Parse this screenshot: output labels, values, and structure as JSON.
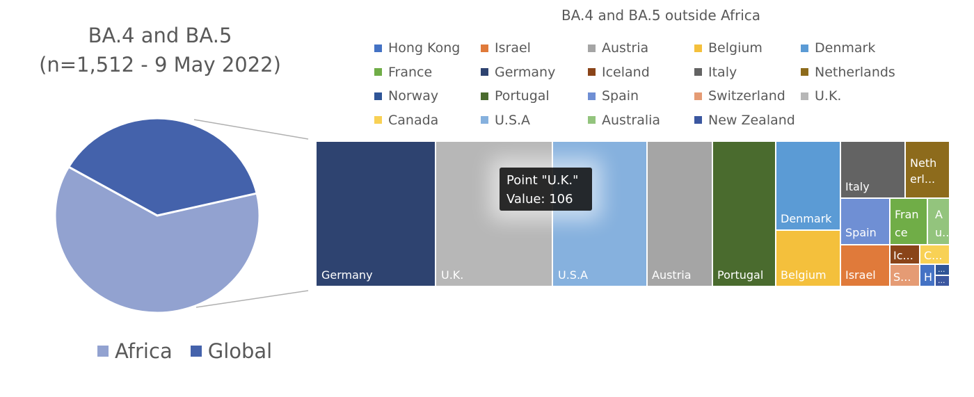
{
  "pie_chart": {
    "title_line1": "BA.4 and BA.5",
    "title_line2": "(n=1,512 - 9 May 2022)",
    "legend": [
      {
        "label": "Africa",
        "color": "#92a2d0"
      },
      {
        "label": "Global",
        "color": "#4462ab"
      }
    ]
  },
  "treemap": {
    "title": "BA.4 and BA.5 outside Africa",
    "legend": [
      {
        "label": "Hong Kong",
        "color": "#4472c4"
      },
      {
        "label": "Israel",
        "color": "#e07a3a"
      },
      {
        "label": "Austria",
        "color": "#a5a5a5"
      },
      {
        "label": "Belgium",
        "color": "#f4c03c"
      },
      {
        "label": "Denmark",
        "color": "#5b9bd5"
      },
      {
        "label": "France",
        "color": "#70ad47"
      },
      {
        "label": "Germany",
        "color": "#2e4370"
      },
      {
        "label": "Iceland",
        "color": "#8a4419"
      },
      {
        "label": "Italy",
        "color": "#636363"
      },
      {
        "label": "Netherlands",
        "color": "#8d6b1c"
      },
      {
        "label": "Norway",
        "color": "#2f5597"
      },
      {
        "label": "Portugal",
        "color": "#4a6b2e"
      },
      {
        "label": "Spain",
        "color": "#6f8fd4"
      },
      {
        "label": "Switzerland",
        "color": "#e59b74"
      },
      {
        "label": "U.K.",
        "color": "#b7b7b7"
      },
      {
        "label": "Canada",
        "color": "#f8d155"
      },
      {
        "label": "U.S.A",
        "color": "#86b1de"
      },
      {
        "label": "Australia",
        "color": "#93c47d"
      },
      {
        "label": "New Zealand",
        "color": "#3b57a0"
      }
    ],
    "tile_labels": {
      "germany": "Germany",
      "uk": "U.K.",
      "usa": "U.S.A",
      "austria": "Austria",
      "portugal": "Portugal",
      "denmark": "Denmark",
      "belgium": "Belgium",
      "italy": "Italy",
      "netherlands_1": "Neth",
      "netherlands_2": "erl...",
      "spain": "Spain",
      "france_1": "Fran",
      "france_2": "ce",
      "australia_1": "A",
      "australia_2": "u...",
      "israel": "Israel",
      "iceland": "Ic...",
      "canada": "C...",
      "switzerland": "S...",
      "hong_kong": "H",
      "norway": "...",
      "new_zealand": "..."
    },
    "tooltip": {
      "line1": "Point \"U.K.\"",
      "line2": "Value: 106"
    }
  },
  "chart_data": [
    {
      "type": "pie",
      "title": "BA.4 and BA.5 (n=1,512 - 9 May 2022)",
      "categories": [
        "Africa",
        "Global"
      ],
      "values": [
        62,
        38
      ]
    },
    {
      "type": "treemap",
      "title": "BA.4 and BA.5 outside Africa",
      "categories": [
        "Germany",
        "U.K.",
        "U.S.A",
        "Austria",
        "Portugal",
        "Denmark",
        "Belgium",
        "Italy",
        "Netherlands",
        "Spain",
        "France",
        "Australia",
        "Israel",
        "Iceland",
        "Canada",
        "Switzerland",
        "Hong Kong",
        "Norway",
        "New Zealand"
      ],
      "values": [
        113,
        106,
        88,
        62,
        58,
        56,
        56,
        26,
        19,
        17,
        12,
        6,
        12,
        5,
        5,
        5,
        2,
        1,
        1
      ]
    }
  ]
}
